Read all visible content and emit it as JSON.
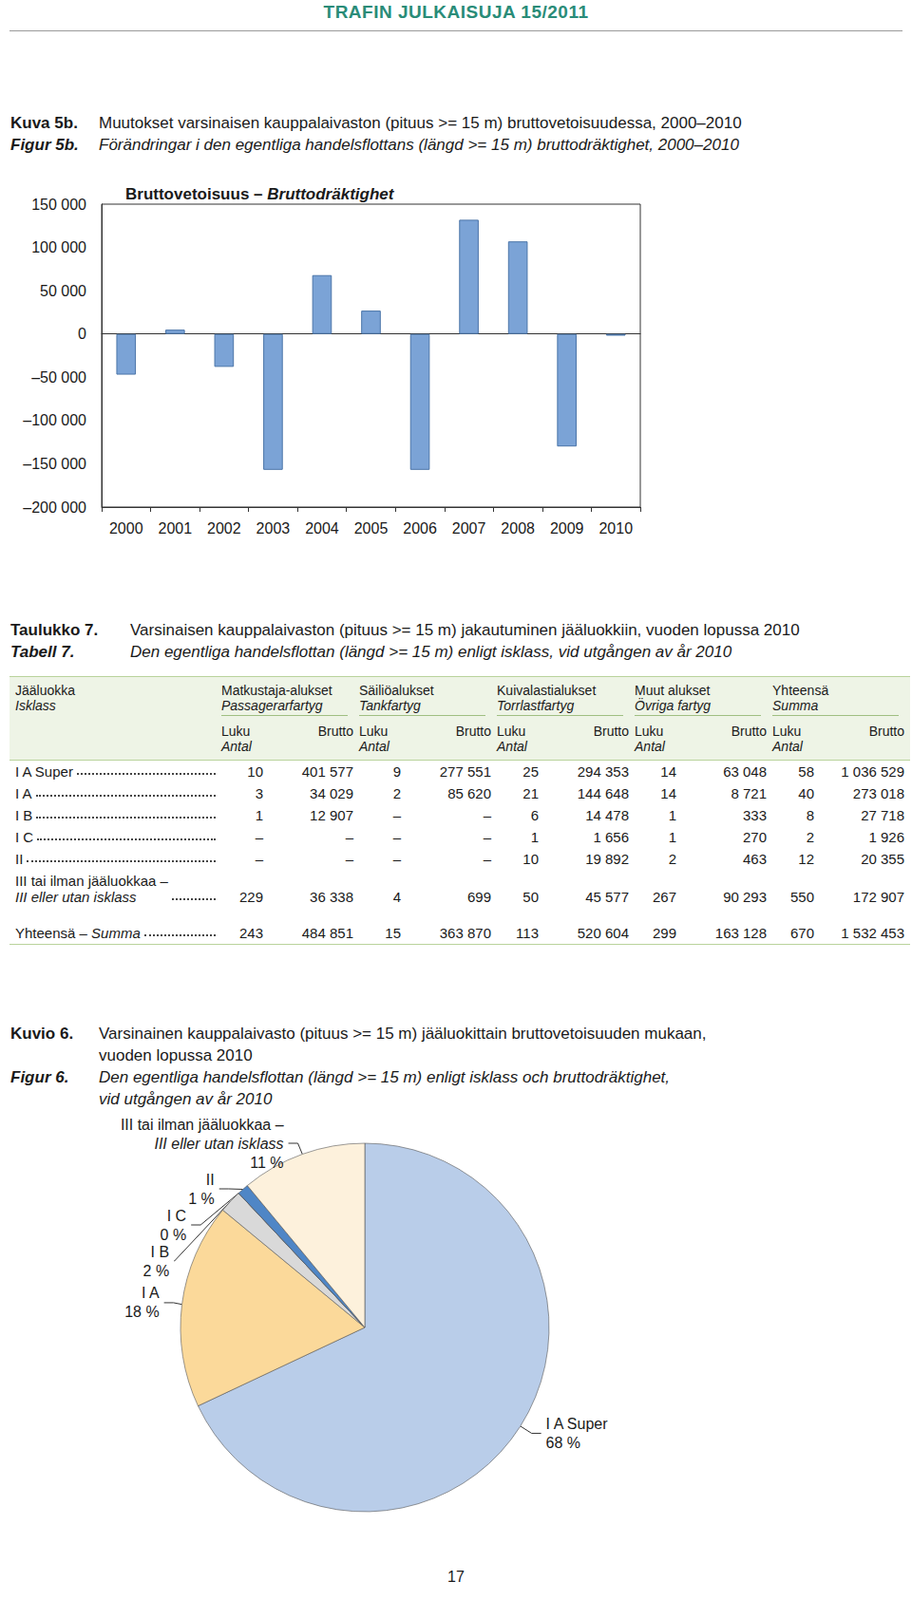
{
  "header": "TRAFIN JULKAISUJA 15/2011",
  "chart_data": [
    {
      "type": "bar",
      "captions": [
        {
          "label": "Kuva 5b.",
          "text": "Muutokset varsinaisen kauppalaivaston (pituus >= 15 m) bruttovetoisuudessa, 2000–2010"
        },
        {
          "label": "Figur 5b.",
          "text": "Förändringar i den egentliga handelsflottans (längd >= 15 m) bruttodräktighet, 2000–2010",
          "italic": true
        }
      ],
      "title": [
        [
          "Bruttovetoisuus – ",
          {
            "italic": "Bruttodräktighet"
          }
        ]
      ],
      "categories": [
        "2000",
        "2001",
        "2002",
        "2003",
        "2004",
        "2005",
        "2006",
        "2007",
        "2008",
        "2009",
        "2010"
      ],
      "values": [
        -47000,
        5000,
        -38000,
        -157000,
        68000,
        27000,
        -157000,
        132000,
        107000,
        -130000,
        -2000
      ],
      "color": "#7ba3d6",
      "ylim": [
        -200000,
        150000
      ],
      "yticks": [
        {
          "value": -200000,
          "label": "–200 000"
        },
        {
          "value": -150000,
          "label": "–150 000"
        },
        {
          "value": -100000,
          "label": "–100 000"
        },
        {
          "value": -50000,
          "label": "–50 000"
        },
        0,
        {
          "value": 50000,
          "label": "50 000"
        },
        {
          "value": 100000,
          "label": "100 000"
        },
        {
          "value": 150000,
          "label": "150 000"
        }
      ],
      "grid": false
    },
    {
      "type": "pie",
      "captions": [
        {
          "label": "Kuvio 6.",
          "text": "Varsinainen kauppalaivasto (pituus >= 15 m) jääluokittain bruttovetoisuuden mukaan,\nvuoden lopussa 2010"
        },
        {
          "label": "Figur 6.",
          "text": "Den egentliga handelsflottan (längd >= 15 m) enligt isklass och bruttodräktighet,\nvid utgången av år 2010",
          "italic": true
        }
      ],
      "categories": [
        "I A Super",
        "I A",
        "I B",
        "I C",
        "II",
        "III tai ilman jääluokkaa –\nIII eller utan isklass"
      ],
      "values": [
        68,
        18,
        2,
        0,
        1,
        11
      ],
      "value_labels": [
        "68 %",
        "18 %",
        "2 %",
        "0 %",
        "1 %",
        "11 %"
      ],
      "colors": [
        "#b9cde9",
        "#fbd99a",
        "#d9d9d9",
        "#111111",
        "#4f86c6",
        "#fdf1dc"
      ]
    }
  ],
  "table": {
    "captions": [
      {
        "label": "Taulukko 7.",
        "text": "Varsinaisen kauppalaivaston (pituus >= 15 m) jakautuminen jääluokkiin, vuoden lopussa 2010"
      },
      {
        "label": "Tabell 7.",
        "text": "Den egentliga handelsflottan (längd >= 15 m) enligt isklass, vid utgången av år 2010",
        "italic": true
      }
    ],
    "stub_header": [
      "Jääluokka",
      "Isklass"
    ],
    "groups": [
      [
        "Matkustaja-alukset",
        "Passagerarfartyg"
      ],
      [
        "Säiliöalukset",
        "Tankfartyg"
      ],
      [
        "Kuivalastialukset",
        "Torrlastfartyg"
      ],
      [
        "Muut alukset",
        "Övriga fartyg"
      ],
      [
        "Yhteensä",
        "Summa"
      ]
    ],
    "subheaders": [
      [
        "Luku",
        "Antal"
      ],
      [
        "Brutto"
      ]
    ],
    "rows": [
      {
        "label": [
          [
            "I A Super"
          ]
        ],
        "cells": [
          "10",
          "401 577",
          "9",
          "277 551",
          "25",
          "294 353",
          "14",
          "63 048",
          "58",
          "1 036 529"
        ]
      },
      {
        "label": [
          [
            "I A"
          ]
        ],
        "cells": [
          "3",
          "34 029",
          "2",
          "85 620",
          "21",
          "144 648",
          "14",
          "8 721",
          "40",
          "273 018"
        ]
      },
      {
        "label": [
          [
            "I B"
          ]
        ],
        "cells": [
          "1",
          "12 907",
          "–",
          "–",
          "6",
          "14 478",
          "1",
          "333",
          "8",
          "27 718"
        ]
      },
      {
        "label": [
          [
            "I C"
          ]
        ],
        "cells": [
          "–",
          "–",
          "–",
          "–",
          "1",
          "1 656",
          "1",
          "270",
          "2",
          "1 926"
        ]
      },
      {
        "label": [
          [
            "II"
          ]
        ],
        "cells": [
          "–",
          "–",
          "–",
          "–",
          "10",
          "19 892",
          "2",
          "463",
          "12",
          "20 355"
        ]
      },
      {
        "label": [
          [
            "III tai ilman jääluokkaa –"
          ],
          [
            {
              "italic": "III eller utan isklass"
            }
          ]
        ],
        "cells": [
          "229",
          "36 338",
          "4",
          "699",
          "50",
          "45 577",
          "267",
          "90 293",
          "550",
          "172 907"
        ]
      }
    ],
    "total": {
      "label": [
        [
          "Yhteensä – ",
          {
            "italic": "Summa"
          }
        ]
      ],
      "cells": [
        "243",
        "484 851",
        "15",
        "363 870",
        "113",
        "520 604",
        "299",
        "163 128",
        "670",
        "1 532 453"
      ]
    }
  },
  "page_number": "17"
}
